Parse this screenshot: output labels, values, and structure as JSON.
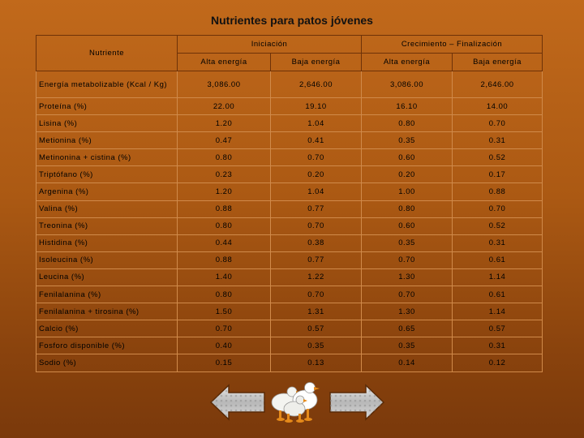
{
  "page": {
    "title": "Nutrientes para patos jóvenes"
  },
  "table": {
    "nutrient_header": "Nutriente",
    "groups": [
      "Iniciación",
      "Crecimiento – Finalización"
    ],
    "subheaders": [
      "Alta energía",
      "Baja energía",
      "Alta energía",
      "Baja energía"
    ],
    "rows": [
      {
        "label": "Energía metabolizable (Kcal / Kg)",
        "values": [
          "3,086.00",
          "2,646.00",
          "3,086.00",
          "2,646.00"
        ]
      },
      {
        "label": "Proteína (%)",
        "values": [
          "22.00",
          "19.10",
          "16.10",
          "14.00"
        ]
      },
      {
        "label": "Lisina (%)",
        "values": [
          "1.20",
          "1.04",
          "0.80",
          "0.70"
        ]
      },
      {
        "label": "Metionina (%)",
        "values": [
          "0.47",
          "0.41",
          "0.35",
          "0.31"
        ]
      },
      {
        "label": "Metinonina + cistina (%)",
        "values": [
          "0.80",
          "0.70",
          "0.60",
          "0.52"
        ]
      },
      {
        "label": "Triptófano (%)",
        "values": [
          "0.23",
          "0.20",
          "0.20",
          "0.17"
        ]
      },
      {
        "label": "Argenina (%)",
        "values": [
          "1.20",
          "1.04",
          "1.00",
          "0.88"
        ]
      },
      {
        "label": "Valina (%)",
        "values": [
          "0.88",
          "0.77",
          "0.80",
          "0.70"
        ]
      },
      {
        "label": "Treonina (%)",
        "values": [
          "0.80",
          "0.70",
          "0.60",
          "0.52"
        ]
      },
      {
        "label": "Histidina (%)",
        "values": [
          "0.44",
          "0.38",
          "0.35",
          "0.31"
        ]
      },
      {
        "label": "Isoleucina (%)",
        "values": [
          "0.88",
          "0.77",
          "0.70",
          "0.61"
        ]
      },
      {
        "label": "Leucina (%)",
        "values": [
          "1.40",
          "1.22",
          "1.30",
          "1.14"
        ]
      },
      {
        "label": "Fenilalanina (%)",
        "values": [
          "0.80",
          "0.70",
          "0.70",
          "0.61"
        ]
      },
      {
        "label": "Fenilalanina + tirosina (%)",
        "values": [
          "1.50",
          "1.31",
          "1.30",
          "1.14"
        ]
      },
      {
        "label": "Calcio (%)",
        "values": [
          "0.70",
          "0.57",
          "0.65",
          "0.57"
        ]
      },
      {
        "label": "Fosforo disponible (%)",
        "values": [
          "0.40",
          "0.35",
          "0.35",
          "0.31"
        ]
      },
      {
        "label": "Sodio (%)",
        "values": [
          "0.15",
          "0.13",
          "0.14",
          "0.12"
        ]
      }
    ]
  },
  "nav": {
    "prev_icon": "left-arrow-icon",
    "next_icon": "right-arrow-icon",
    "image_icon": "ducks-icon"
  },
  "colors": {
    "background_top": "#c1691b",
    "background_bottom": "#7a390b"
  }
}
